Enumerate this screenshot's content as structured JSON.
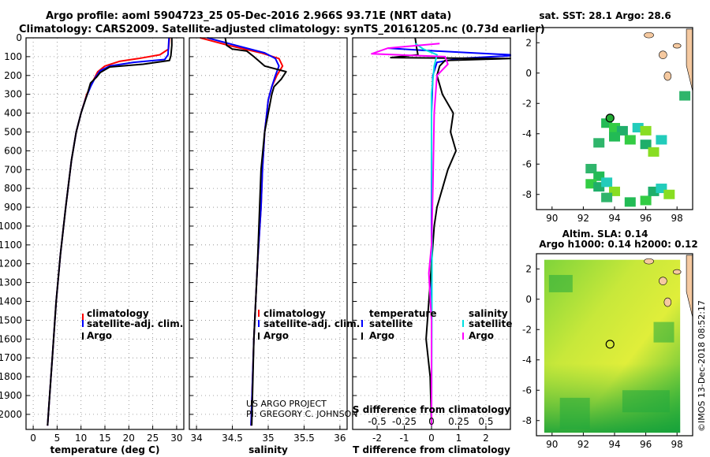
{
  "header": {
    "line1": "Argo profile: aoml 5904723_25 05-Dec-2016 2.966S 93.71E (NRT data)",
    "line2": "Climatology: CARS2009. Satellite-adjusted climatology: synTS_20161205.nc (0.73d earlier)"
  },
  "depth_axis": {
    "ticks": [
      0,
      100,
      200,
      300,
      400,
      500,
      600,
      700,
      800,
      900,
      1000,
      1100,
      1200,
      1300,
      1400,
      1500,
      1600,
      1700,
      1800,
      1900,
      2000
    ]
  },
  "legend_temp_sal": [
    "climatology",
    "satellite-adj. clim.",
    "Argo"
  ],
  "legend_diff": {
    "left_title": "temperature",
    "right_title": "salinity",
    "left_items": [
      "satellite",
      "Argo"
    ],
    "right_items": [
      "satellite",
      "Argo"
    ]
  },
  "credit": {
    "line1": "US ARGO PROJECT",
    "line2": "PI: GREGORY C. JOHNSON"
  },
  "colors": {
    "climatology": "#ff0000",
    "satellite": "#0000ff",
    "argo": "#000000",
    "s_satellite": "#00e0e0",
    "s_argo": "#ff00ff"
  },
  "chart_data": [
    {
      "type": "line",
      "xlabel": "temperature (deg C)",
      "xticks": [
        0,
        5,
        10,
        15,
        20,
        25,
        30
      ],
      "xlim": [
        -1.5,
        31.5
      ],
      "ylim": [
        2080,
        0
      ],
      "series": [
        {
          "name": "climatology",
          "color": "#ff0000",
          "points": [
            [
              28.5,
              0
            ],
            [
              28.3,
              60
            ],
            [
              26.5,
              90
            ],
            [
              22,
              110
            ],
            [
              18,
              125
            ],
            [
              15,
              150
            ],
            [
              13.5,
              180
            ],
            [
              12.5,
              230
            ],
            [
              11.2,
              300
            ],
            [
              10,
              400
            ],
            [
              9,
              500
            ],
            [
              8,
              650
            ],
            [
              6.8,
              900
            ],
            [
              5.7,
              1150
            ],
            [
              4.8,
              1400
            ],
            [
              4,
              1700
            ],
            [
              3.3,
              1950
            ],
            [
              3.0,
              2060
            ]
          ]
        },
        {
          "name": "satellite-adj. clim.",
          "color": "#0000ff",
          "points": [
            [
              28.4,
              0
            ],
            [
              28.2,
              90
            ],
            [
              27.5,
              115
            ],
            [
              21,
              130
            ],
            [
              16,
              150
            ],
            [
              14,
              175
            ],
            [
              13,
              210
            ],
            [
              12,
              260
            ],
            [
              11,
              320
            ],
            [
              10,
              400
            ],
            [
              9,
              500
            ],
            [
              8,
              650
            ],
            [
              6.8,
              900
            ],
            [
              5.7,
              1150
            ],
            [
              4.8,
              1400
            ],
            [
              4,
              1700
            ],
            [
              3.3,
              1950
            ],
            [
              3.0,
              2060
            ]
          ]
        },
        {
          "name": "Argo",
          "color": "#000000",
          "points": [
            [
              29,
              0
            ],
            [
              29,
              40
            ],
            [
              28.8,
              95
            ],
            [
              28.5,
              120
            ],
            [
              23,
              140
            ],
            [
              16,
              155
            ],
            [
              14,
              185
            ],
            [
              13.2,
              210
            ],
            [
              12,
              240
            ],
            [
              11.3,
              300
            ],
            [
              10,
              400
            ],
            [
              9,
              500
            ],
            [
              8,
              650
            ],
            [
              6.8,
              900
            ],
            [
              5.7,
              1150
            ],
            [
              4.8,
              1400
            ],
            [
              4,
              1700
            ],
            [
              3.3,
              1950
            ],
            [
              3.0,
              2060
            ]
          ]
        }
      ]
    },
    {
      "type": "line",
      "xlabel": "salinity",
      "xticks": [
        34,
        34.5,
        35,
        35.5,
        36
      ],
      "xlim": [
        33.9,
        36.1
      ],
      "ylim": [
        2080,
        0
      ],
      "series": [
        {
          "name": "climatology",
          "color": "#ff0000",
          "points": [
            [
              34.05,
              0
            ],
            [
              34.45,
              40
            ],
            [
              34.9,
              80
            ],
            [
              35.15,
              110
            ],
            [
              35.2,
              150
            ],
            [
              35.12,
              200
            ],
            [
              35.05,
              260
            ],
            [
              35.0,
              330
            ],
            [
              34.98,
              400
            ],
            [
              34.95,
              500
            ],
            [
              34.92,
              700
            ],
            [
              34.9,
              900
            ],
            [
              34.85,
              1200
            ],
            [
              34.8,
              1600
            ],
            [
              34.76,
              2060
            ]
          ]
        },
        {
          "name": "satellite-adj. clim.",
          "color": "#0000ff",
          "points": [
            [
              34.15,
              0
            ],
            [
              34.55,
              40
            ],
            [
              34.95,
              80
            ],
            [
              35.1,
              110
            ],
            [
              35.15,
              150
            ],
            [
              35.1,
              200
            ],
            [
              35.05,
              260
            ],
            [
              35.0,
              330
            ],
            [
              34.98,
              400
            ],
            [
              34.95,
              500
            ],
            [
              34.92,
              700
            ],
            [
              34.9,
              900
            ],
            [
              34.85,
              1200
            ],
            [
              34.8,
              1600
            ],
            [
              34.76,
              2060
            ]
          ]
        },
        {
          "name": "Argo",
          "color": "#000000",
          "points": [
            [
              34.4,
              0
            ],
            [
              34.42,
              40
            ],
            [
              34.5,
              60
            ],
            [
              34.7,
              70
            ],
            [
              34.8,
              100
            ],
            [
              34.95,
              150
            ],
            [
              35.25,
              180
            ],
            [
              35.18,
              220
            ],
            [
              35.08,
              260
            ],
            [
              35.05,
              300
            ],
            [
              35.0,
              400
            ],
            [
              34.95,
              500
            ],
            [
              34.9,
              700
            ],
            [
              34.88,
              900
            ],
            [
              34.85,
              1200
            ],
            [
              34.8,
              1600
            ],
            [
              34.77,
              2060
            ]
          ]
        }
      ]
    },
    {
      "type": "line",
      "xlabel": "T difference from climatology",
      "x2label": "S difference from climatology",
      "xticks": [
        -2,
        -1,
        0,
        1,
        2
      ],
      "x2ticks": [
        -0.5,
        -0.25,
        0,
        0.25,
        0.5
      ],
      "xlim": [
        -2.9,
        2.9
      ],
      "ylim": [
        2080,
        0
      ],
      "series": [
        {
          "name": "T satellite",
          "color": "#0000ff",
          "points": [
            [
              -1.6,
              55
            ],
            [
              -0.5,
              65
            ],
            [
              1.5,
              80
            ],
            [
              2.9,
              90
            ],
            [
              2.9,
              95
            ],
            [
              1.0,
              110
            ],
            [
              0.2,
              130
            ],
            [
              0.05,
              200
            ],
            [
              0,
              400
            ],
            [
              0,
              2060
            ]
          ]
        },
        {
          "name": "T Argo",
          "color": "#000000",
          "points": [
            [
              -0.6,
              0
            ],
            [
              -0.55,
              50
            ],
            [
              -0.5,
              90
            ],
            [
              -1.5,
              105
            ],
            [
              2.9,
              110
            ],
            [
              0.5,
              120
            ],
            [
              0.3,
              150
            ],
            [
              0.2,
              200
            ],
            [
              0.4,
              300
            ],
            [
              0.8,
              400
            ],
            [
              0.7,
              500
            ],
            [
              0.9,
              600
            ],
            [
              0.6,
              700
            ],
            [
              0.4,
              800
            ],
            [
              0.2,
              900
            ],
            [
              0.1,
              1000
            ],
            [
              0,
              1200
            ],
            [
              -0.1,
              1400
            ],
            [
              -0.2,
              1600
            ],
            [
              -0.05,
              1800
            ],
            [
              0,
              2060
            ]
          ]
        },
        {
          "name": "S satellite",
          "color": "#00e0e0",
          "points": [
            [
              -0.6,
              30
            ],
            [
              -0.3,
              60
            ],
            [
              0.2,
              90
            ],
            [
              0.1,
              150
            ],
            [
              0,
              300
            ],
            [
              0,
              600
            ],
            [
              0.02,
              1000
            ],
            [
              0,
              2060
            ]
          ]
        },
        {
          "name": "S Argo",
          "color": "#ff00ff",
          "points": [
            [
              0.3,
              30
            ],
            [
              -1.6,
              55
            ],
            [
              -2.2,
              85
            ],
            [
              0.5,
              100
            ],
            [
              0.6,
              140
            ],
            [
              0.2,
              200
            ],
            [
              0.1,
              400
            ],
            [
              0.05,
              800
            ],
            [
              0,
              1100
            ],
            [
              -0.1,
              1250
            ],
            [
              0,
              1500
            ],
            [
              0,
              2060
            ]
          ]
        }
      ]
    },
    {
      "type": "heatmap",
      "title": "sat. SST: 28.1 Argo: 28.6",
      "xticks": [
        90,
        92,
        94,
        96,
        98
      ],
      "yticks": [
        2,
        0,
        -2,
        -4,
        -6,
        -8
      ],
      "xlim": [
        89,
        99
      ],
      "ylim": [
        3,
        -9
      ],
      "marker": {
        "lon": 93.71,
        "lat": -2.966
      },
      "cells": [
        [
          93.5,
          -3.3
        ],
        [
          94,
          -3.6
        ],
        [
          94.5,
          -3.8
        ],
        [
          95.5,
          -3.6
        ],
        [
          96,
          -3.8
        ],
        [
          93,
          -4.6
        ],
        [
          94,
          -4.2
        ],
        [
          95,
          -4.4
        ],
        [
          96,
          -4.7
        ],
        [
          97,
          -4.4
        ],
        [
          96.5,
          -5.2
        ],
        [
          92.5,
          -6.3
        ],
        [
          93,
          -6.8
        ],
        [
          92.5,
          -7.3
        ],
        [
          93,
          -7.5
        ],
        [
          93.5,
          -7.2
        ],
        [
          94,
          -7.8
        ],
        [
          93.5,
          -8.2
        ],
        [
          95,
          -8.5
        ],
        [
          96,
          -8.4
        ],
        [
          96.5,
          -7.8
        ],
        [
          97,
          -7.6
        ],
        [
          97.5,
          -8.0
        ],
        [
          98.5,
          -1.5
        ]
      ]
    },
    {
      "type": "heatmap",
      "title_line1": "Altim. SLA: 0.14",
      "title_line2": "Argo h1000: 0.14 h2000: 0.12",
      "xticks": [
        90,
        92,
        94,
        96,
        98
      ],
      "yticks": [
        2,
        0,
        -2,
        -4,
        -6,
        -8
      ],
      "xlim": [
        89,
        99
      ],
      "ylim": [
        3,
        -9
      ],
      "marker": {
        "lon": 93.71,
        "lat": -2.966
      }
    }
  ],
  "imos_stamp": "©IMOS 13-Dec-2018 08:52:17"
}
